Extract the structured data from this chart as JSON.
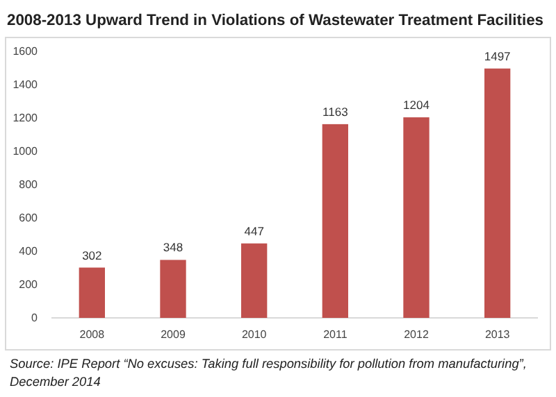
{
  "chart_data": {
    "type": "bar",
    "title": "2008-2013 Upward Trend in Violations of Wastewater Treatment Facilities",
    "categories": [
      "2008",
      "2009",
      "2010",
      "2011",
      "2012",
      "2013"
    ],
    "values": [
      302,
      348,
      447,
      1163,
      1204,
      1497
    ],
    "color": "#c0504d",
    "ylim": [
      0,
      1600
    ],
    "yticks": [
      0,
      200,
      400,
      600,
      800,
      1000,
      1200,
      1400,
      1600
    ],
    "grid": false,
    "data_labels": true,
    "annotations": [
      "Source: IPE Report “No excuses: Taking full responsibility for pollution from manufacturing”, December 2014"
    ]
  }
}
